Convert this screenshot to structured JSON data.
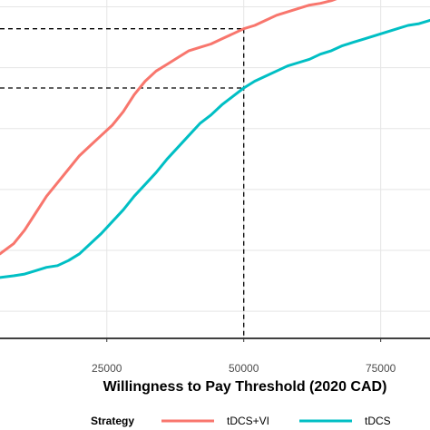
{
  "chart_data": {
    "type": "line",
    "title": "",
    "xlabel": "Willingness to Pay Threshold (2020 CAD)",
    "ylabel": "",
    "xlim": [
      5500,
      84000
    ],
    "ylim": [
      0.0,
      1.0
    ],
    "x_ticks": [
      25000,
      50000,
      75000
    ],
    "x_tick_labels": [
      "25000",
      "50000",
      "75000"
    ],
    "y_gridlines": [
      0.08,
      0.26,
      0.44,
      0.62,
      0.8,
      0.98
    ],
    "grid": true,
    "legend": {
      "title": "Strategy",
      "placement": "bottom"
    },
    "series": [
      {
        "name": "tDCS+VI",
        "color": "#F8766D",
        "x": [
          5500,
          8000,
          10000,
          12000,
          14000,
          16000,
          18000,
          20000,
          22000,
          24000,
          26000,
          28000,
          30000,
          32000,
          34000,
          36000,
          38000,
          40000,
          42000,
          44000,
          46000,
          48000,
          50000,
          52000,
          54000,
          56000,
          58000,
          60000,
          62000,
          64000,
          66000,
          68000,
          70000,
          72000,
          74000,
          76000,
          78000,
          80000,
          82000,
          84000
        ],
        "y": [
          0.25,
          0.28,
          0.32,
          0.37,
          0.42,
          0.46,
          0.5,
          0.54,
          0.57,
          0.6,
          0.63,
          0.67,
          0.72,
          0.76,
          0.79,
          0.81,
          0.83,
          0.85,
          0.86,
          0.87,
          0.885,
          0.9,
          0.915,
          0.925,
          0.94,
          0.955,
          0.965,
          0.975,
          0.985,
          0.99,
          0.998,
          1.01,
          1.025,
          1.035,
          1.045,
          1.055,
          1.06,
          1.065,
          1.07,
          1.08
        ]
      },
      {
        "name": "tDCS",
        "color": "#00BFC4",
        "x": [
          5500,
          8000,
          10000,
          12000,
          14000,
          16000,
          18000,
          20000,
          22000,
          24000,
          26000,
          28000,
          30000,
          32000,
          34000,
          36000,
          38000,
          40000,
          42000,
          44000,
          46000,
          48000,
          50000,
          52000,
          54000,
          56000,
          58000,
          60000,
          62000,
          64000,
          66000,
          68000,
          70000,
          72000,
          74000,
          76000,
          78000,
          80000,
          82000,
          84000
        ],
        "y": [
          0.18,
          0.185,
          0.19,
          0.2,
          0.21,
          0.215,
          0.23,
          0.25,
          0.28,
          0.31,
          0.345,
          0.38,
          0.42,
          0.455,
          0.49,
          0.53,
          0.565,
          0.6,
          0.635,
          0.66,
          0.69,
          0.715,
          0.74,
          0.76,
          0.775,
          0.79,
          0.805,
          0.815,
          0.825,
          0.84,
          0.85,
          0.865,
          0.875,
          0.885,
          0.895,
          0.905,
          0.915,
          0.925,
          0.93,
          0.94
        ]
      }
    ],
    "reference_lines": [
      {
        "x": 50000,
        "y": 0.915
      },
      {
        "x": 50000,
        "y": 0.74
      }
    ]
  }
}
